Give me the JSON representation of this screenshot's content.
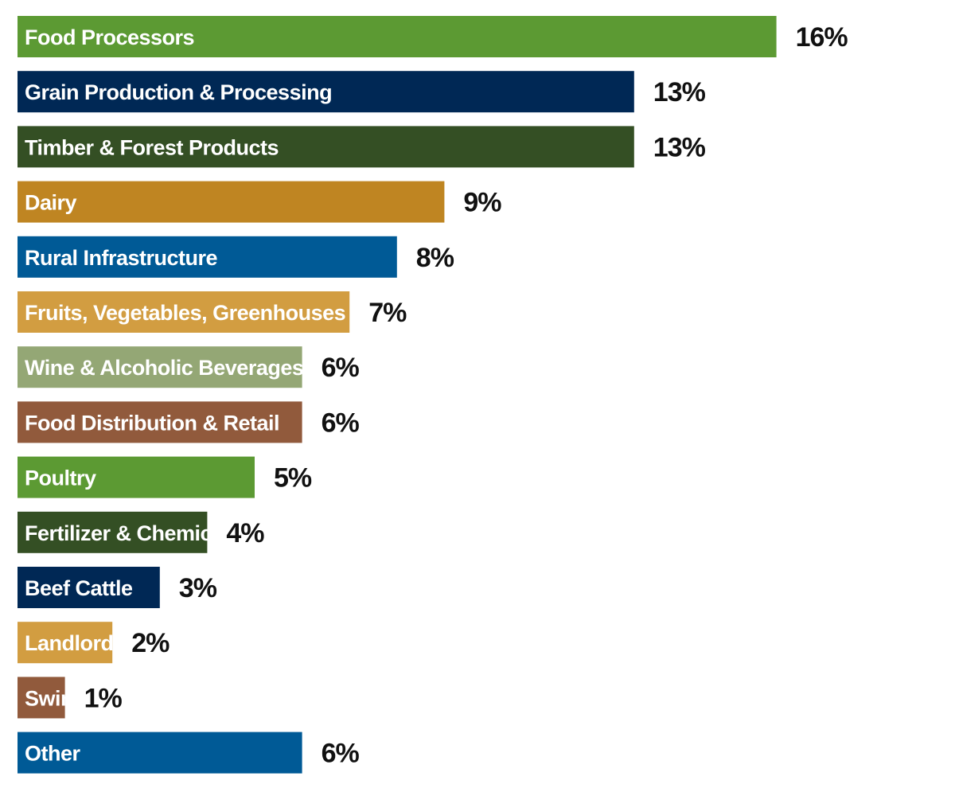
{
  "chart_data": {
    "type": "bar",
    "orientation": "horizontal",
    "title": "",
    "xlabel": "",
    "ylabel": "",
    "grid": false,
    "unit": "%",
    "categories": [
      "Food Processors",
      "Grain Production & Processing",
      "Timber & Forest Products",
      "Dairy",
      "Rural Infrastructure",
      "Fruits, Vegetables, Greenhouses",
      "Wine & Alcoholic Beverages",
      "Food Distribution & Retail",
      "Poultry",
      "Fertilizer & Chemicals",
      "Beef Cattle",
      "Landlord",
      "Swine",
      "Other"
    ],
    "values": [
      16,
      13,
      13,
      9,
      8,
      7,
      6,
      6,
      5,
      4,
      3,
      2,
      1,
      6
    ],
    "value_labels": [
      "16%",
      "13%",
      "13%",
      "9%",
      "8%",
      "7%",
      "6%",
      "6%",
      "5%",
      "4%",
      "3%",
      "2%",
      "1%",
      "6%"
    ],
    "colors": [
      "#5c9a33",
      "#002855",
      "#344f24",
      "#bf8522",
      "#005a96",
      "#d29d41",
      "#94a775",
      "#915a3c",
      "#5c9a33",
      "#344f24",
      "#002855",
      "#d29d41",
      "#915a3c",
      "#005a96"
    ]
  }
}
